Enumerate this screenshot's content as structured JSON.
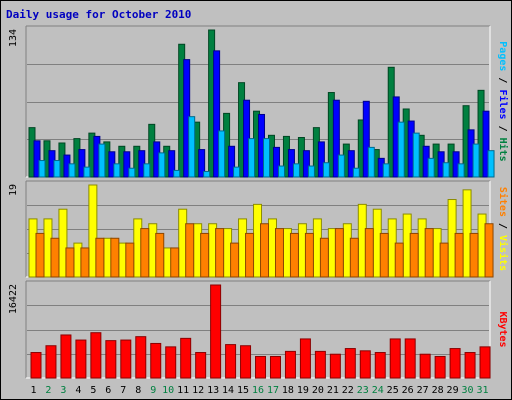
{
  "page": {
    "title": "Daily usage for October 2010"
  },
  "chart_data": [
    {
      "type": "bar",
      "panel": "top",
      "ymax_label": "134",
      "ylim": [
        0,
        134
      ],
      "grid": true,
      "categories": [
        "1",
        "2",
        "3",
        "4",
        "5",
        "6",
        "7",
        "8",
        "9",
        "10",
        "11",
        "12",
        "13",
        "14",
        "15",
        "16",
        "17",
        "18",
        "19",
        "20",
        "21",
        "22",
        "23",
        "24",
        "25",
        "26",
        "27",
        "28",
        "29",
        "30",
        "31"
      ],
      "side_labels": [
        {
          "text": "Pages",
          "color": "#00c0ff"
        },
        {
          "text": " / ",
          "color": "#000000"
        },
        {
          "text": "Files",
          "color": "#0000ff"
        },
        {
          "text": " / ",
          "color": "#000000"
        },
        {
          "text": "Hits",
          "color": "#008040"
        }
      ],
      "series": [
        {
          "name": "Hits",
          "color": "#008040",
          "values": [
            45,
            33,
            31,
            35,
            40,
            32,
            28,
            28,
            48,
            28,
            121,
            50,
            134,
            58,
            86,
            60,
            38,
            37,
            36,
            45,
            77,
            30,
            52,
            25,
            100,
            62,
            38,
            30,
            30,
            65,
            79
          ]
        },
        {
          "name": "Files",
          "color": "#0000ff",
          "values": [
            33,
            24,
            20,
            25,
            37,
            23,
            23,
            24,
            32,
            24,
            107,
            25,
            115,
            28,
            70,
            57,
            27,
            25,
            24,
            32,
            70,
            24,
            69,
            17,
            73,
            51,
            28,
            23,
            23,
            43,
            60
          ]
        },
        {
          "name": "Pages",
          "color": "#00c0ff",
          "values": [
            15,
            15,
            12,
            9,
            30,
            12,
            8,
            12,
            22,
            6,
            55,
            5,
            42,
            9,
            35,
            35,
            10,
            12,
            10,
            13,
            20,
            8,
            27,
            12,
            50,
            40,
            17,
            13,
            12,
            30,
            24
          ]
        }
      ]
    },
    {
      "type": "bar",
      "panel": "middle",
      "ymax_label": "19",
      "ylim": [
        0,
        19
      ],
      "grid": true,
      "categories": [
        "1",
        "2",
        "3",
        "4",
        "5",
        "6",
        "7",
        "8",
        "9",
        "10",
        "11",
        "12",
        "13",
        "14",
        "15",
        "16",
        "17",
        "18",
        "19",
        "20",
        "21",
        "22",
        "23",
        "24",
        "25",
        "26",
        "27",
        "28",
        "29",
        "30",
        "31"
      ],
      "side_labels": [
        {
          "text": "Sites",
          "color": "#ff8000"
        },
        {
          "text": " / ",
          "color": "#000000"
        },
        {
          "text": "Visits",
          "color": "#ffff00"
        }
      ],
      "series": [
        {
          "name": "Visits",
          "color": "#ffff00",
          "values": [
            12,
            12,
            14,
            7,
            19,
            8,
            7,
            12,
            11,
            6,
            14,
            11,
            11,
            10,
            12,
            15,
            12,
            10,
            11,
            12,
            10,
            11,
            15,
            14,
            12,
            13,
            12,
            10,
            16,
            18,
            13
          ]
        },
        {
          "name": "Sites",
          "color": "#ff8000",
          "values": [
            9,
            8,
            6,
            6,
            8,
            8,
            7,
            10,
            9,
            6,
            11,
            9,
            10,
            7,
            9,
            11,
            10,
            9,
            9,
            8,
            10,
            8,
            10,
            9,
            7,
            9,
            10,
            7,
            9,
            9,
            11
          ]
        }
      ]
    },
    {
      "type": "bar",
      "panel": "bottom",
      "ymax_label": "16422",
      "ylim": [
        0,
        16422
      ],
      "grid": true,
      "categories": [
        "1",
        "2",
        "3",
        "4",
        "5",
        "6",
        "7",
        "8",
        "9",
        "10",
        "11",
        "12",
        "13",
        "14",
        "15",
        "16",
        "17",
        "18",
        "19",
        "20",
        "21",
        "22",
        "23",
        "24",
        "25",
        "26",
        "27",
        "28",
        "29",
        "30",
        "31"
      ],
      "side_labels": [
        {
          "text": "KBytes",
          "color": "#ff0000"
        }
      ],
      "series": [
        {
          "name": "KBytes",
          "color": "#ff0000",
          "values": [
            4500,
            5700,
            7600,
            6700,
            8000,
            6600,
            6700,
            7300,
            6100,
            5500,
            7000,
            4500,
            16422,
            5900,
            5700,
            3800,
            3800,
            4700,
            6900,
            4700,
            4200,
            5200,
            4800,
            4500,
            6900,
            6900,
            4200,
            3800,
            5200,
            4500,
            5500
          ]
        }
      ]
    }
  ],
  "x_axis": {
    "weekend_color": "#008040",
    "weekday_color": "#000000",
    "weekend_days": [
      "2",
      "3",
      "9",
      "10",
      "16",
      "17",
      "23",
      "24",
      "30",
      "31"
    ]
  }
}
